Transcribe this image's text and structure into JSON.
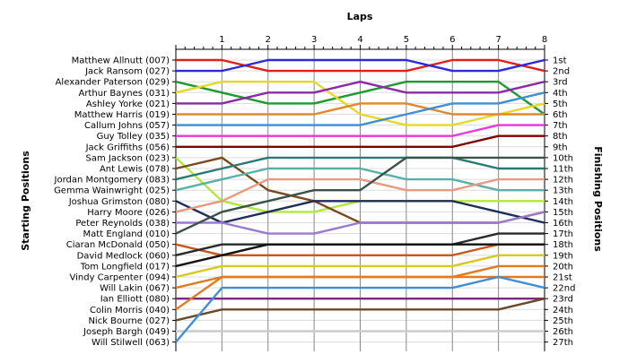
{
  "chart_data": {
    "type": "line",
    "title": "Laps",
    "ylabel": "Starting Positions",
    "y2label": "Finishing Positions",
    "x": [
      0,
      1,
      2,
      3,
      4,
      5,
      6,
      7,
      8
    ],
    "x_tick_labels": [
      "1",
      "2",
      "3",
      "4",
      "5",
      "6",
      "7",
      "8"
    ],
    "xlim": [
      0,
      8
    ],
    "ylim": [
      1,
      27
    ],
    "y_inverted": true,
    "grid": true,
    "finishing_positions": [
      "1st",
      "2nd",
      "3rd",
      "4th",
      "5th",
      "6th",
      "7th",
      "8th",
      "9th",
      "10th",
      "11th",
      "12th",
      "13th",
      "14th",
      "15th",
      "16th",
      "17th",
      "18th",
      "19th",
      "20th",
      "21st",
      "22nd",
      "23rd",
      "24th",
      "25th",
      "26th",
      "27th"
    ],
    "series": [
      {
        "name": "Matthew Allnutt (007)",
        "color": "#e0201c",
        "values": [
          1,
          1,
          2,
          2,
          2,
          2,
          1,
          1,
          2
        ]
      },
      {
        "name": "Jack Ransom (027)",
        "color": "#2a2adb",
        "values": [
          2,
          2,
          1,
          1,
          1,
          1,
          2,
          2,
          1
        ]
      },
      {
        "name": "Alexander Paterson (029)",
        "color": "#1f9a2e",
        "values": [
          3,
          4,
          5,
          5,
          4,
          3,
          3,
          3,
          6
        ]
      },
      {
        "name": "Arthur Baynes (031)",
        "color": "#e8d824",
        "values": [
          4,
          3,
          3,
          3,
          6,
          7,
          7,
          6,
          5
        ]
      },
      {
        "name": "Ashley Yorke (021)",
        "color": "#8a2aa8",
        "values": [
          5,
          5,
          4,
          4,
          3,
          4,
          4,
          4,
          3
        ]
      },
      {
        "name": "Matthew Harris (019)",
        "color": "#e0882a",
        "values": [
          6,
          6,
          6,
          6,
          5,
          5,
          6,
          6,
          6
        ]
      },
      {
        "name": "Callum Johns (057)",
        "color": "#3e8ed8",
        "values": [
          7,
          7,
          7,
          7,
          7,
          6,
          5,
          5,
          4
        ]
      },
      {
        "name": "Guy Tolley (035)",
        "color": "#e838d8",
        "values": [
          8,
          8,
          8,
          8,
          8,
          8,
          8,
          7,
          7
        ]
      },
      {
        "name": "Jack Griffiths (056)",
        "color": "#800000",
        "values": [
          9,
          9,
          9,
          9,
          9,
          9,
          9,
          8,
          8
        ]
      },
      {
        "name": "Sam Jackson (023)",
        "color": "#b0e83c",
        "values": [
          10,
          14,
          15,
          15,
          14,
          14,
          14,
          14,
          14
        ]
      },
      {
        "name": "Ant Lewis (078)",
        "color": "#7a4a1e",
        "values": [
          11,
          10,
          13,
          14,
          16,
          16,
          16,
          16,
          15
        ]
      },
      {
        "name": "Jordan Montgomery (083)",
        "color": "#2a7a74",
        "values": [
          12,
          11,
          10,
          10,
          10,
          10,
          10,
          11,
          11
        ]
      },
      {
        "name": "Gemma Wainwright (025)",
        "color": "#58b0a8",
        "values": [
          13,
          12,
          11,
          11,
          11,
          12,
          12,
          13,
          13
        ]
      },
      {
        "name": "Joshua Grimston (080)",
        "color": "#1c2e5a",
        "values": [
          14,
          16,
          15,
          14,
          14,
          14,
          14,
          15,
          16
        ]
      },
      {
        "name": "Harry Moore (026)",
        "color": "#e89a80",
        "values": [
          15,
          14,
          12,
          12,
          12,
          13,
          13,
          12,
          12
        ]
      },
      {
        "name": "Peter Reynolds (038)",
        "color": "#9a7ad0",
        "values": [
          16,
          16,
          17,
          17,
          16,
          16,
          16,
          16,
          15
        ]
      },
      {
        "name": "Matt England (010)",
        "color": "#3a5248",
        "values": [
          17,
          15,
          14,
          13,
          13,
          10,
          10,
          10,
          10
        ]
      },
      {
        "name": "Ciaran McDonald (050)",
        "color": "#c8581e",
        "values": [
          18,
          19,
          19,
          19,
          19,
          19,
          19,
          18,
          18
        ]
      },
      {
        "name": "David Medlock (060)",
        "color": "#2a2a2a",
        "values": [
          19,
          18,
          18,
          18,
          18,
          18,
          18,
          17,
          17
        ]
      },
      {
        "name": "Tom Longfield (017)",
        "color": "#111111",
        "values": [
          20,
          19,
          18,
          18,
          18,
          18,
          18,
          18,
          18
        ]
      },
      {
        "name": "Vindy Carpenter (094)",
        "color": "#d8c820",
        "values": [
          21,
          20,
          20,
          20,
          20,
          20,
          20,
          19,
          19
        ]
      },
      {
        "name": "Will Lakin (067)",
        "color": "#e07a1e",
        "values": [
          22,
          21,
          21,
          21,
          21,
          21,
          21,
          20,
          20
        ]
      },
      {
        "name": "Ian Elliott (080)",
        "color": "#7a2a7a",
        "values": [
          23,
          23,
          23,
          23,
          23,
          23,
          23,
          23,
          23
        ]
      },
      {
        "name": "Colin Morris (040)",
        "color": "#e8781e",
        "values": [
          24,
          21,
          21,
          21,
          21,
          21,
          21,
          21,
          21
        ]
      },
      {
        "name": "Nick Bourne (027)",
        "color": "#6a4a2a",
        "values": [
          25,
          24,
          24,
          24,
          24,
          24,
          24,
          24,
          23
        ]
      },
      {
        "name": "Joseph Bargh (049)",
        "color": "#cccccc",
        "values": [
          26,
          26,
          26,
          26,
          26,
          26,
          26,
          26,
          26
        ]
      },
      {
        "name": "Will Stilwell (063)",
        "color": "#3e8ed8",
        "values": [
          27,
          22,
          22,
          22,
          22,
          22,
          22,
          21,
          22
        ]
      }
    ]
  }
}
